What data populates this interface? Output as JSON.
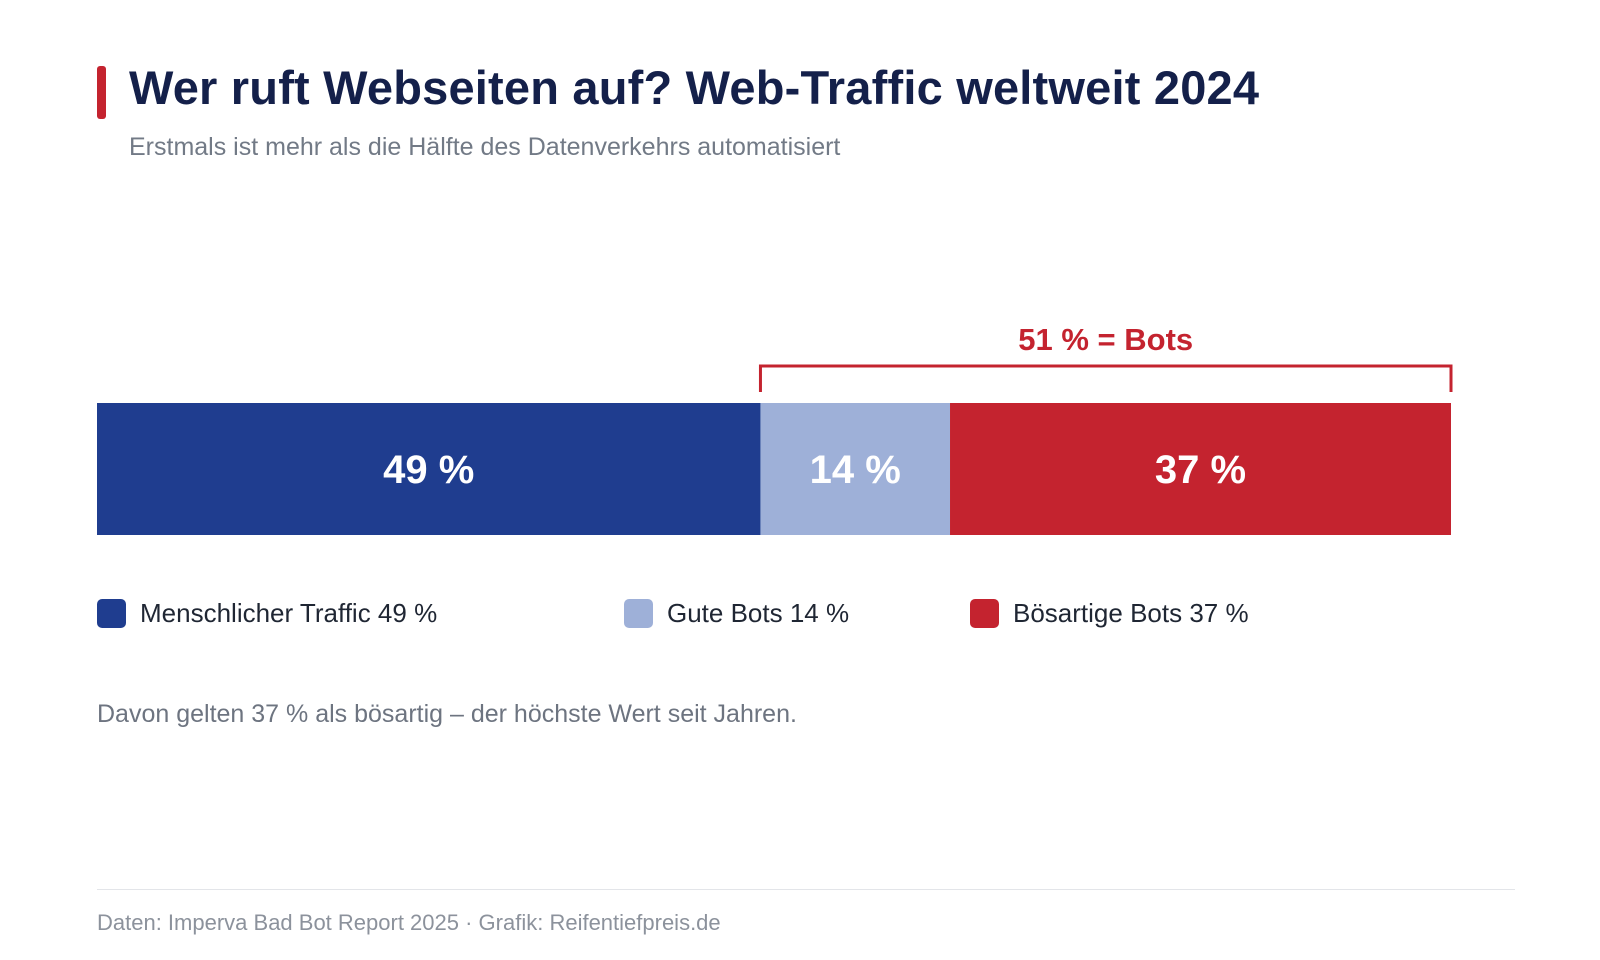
{
  "header": {
    "title": "Wer ruft Webseiten auf? Web-Traffic weltweit 2024",
    "subtitle": "Erstmals ist mehr als die Hälfte des Datenverkehrs automatisiert"
  },
  "colors": {
    "accent": "#c4232f",
    "human": "#1f3d8f",
    "good_bots": "#9eb0d8",
    "bad_bots": "#c4232f",
    "bar_text_dark": "#ffffff"
  },
  "chart_data": {
    "type": "bar",
    "orientation": "horizontal-stacked",
    "series": [
      {
        "name": "Menschlicher Traffic",
        "value": 49,
        "label": "49 %",
        "legend": "Menschlicher Traffic 49 %",
        "color": "#1f3d8f"
      },
      {
        "name": "Gute Bots",
        "value": 14,
        "label": "14 %",
        "legend": "Gute Bots 14 %",
        "color": "#9eb0d8"
      },
      {
        "name": "Bösartige Bots",
        "value": 37,
        "label": "37 %",
        "legend": "Bösartige Bots 37 %",
        "color": "#c4232f"
      }
    ],
    "total": 100,
    "bracket": {
      "from": 49,
      "to": 100,
      "label": "51 % = Bots"
    }
  },
  "note": "Davon gelten 37 % als bösartig – der höchste Wert seit Jahren.",
  "footer": {
    "source": "Daten: Imperva Bad Bot Report 2025 · Grafik: Reifentiefpreis.de"
  }
}
